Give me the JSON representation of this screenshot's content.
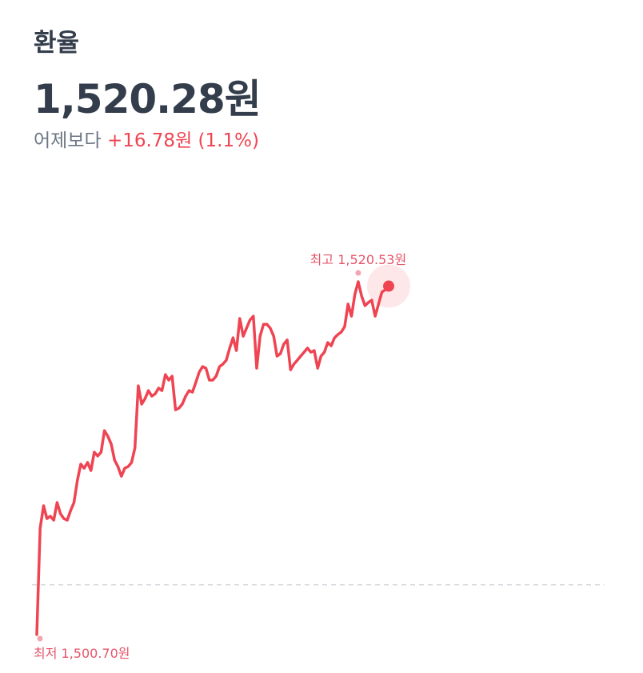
{
  "header": {
    "title": "환율",
    "price": "1,520.28원",
    "compare_label": "어제보다",
    "change": "+16.78원 (1.1%)"
  },
  "chart_data": {
    "type": "line",
    "color": "#ef4452",
    "values": [
      1500.7,
      1506.68,
      1507.94,
      1507.22,
      1507.35,
      1507.13,
      1508.12,
      1507.49,
      1507.22,
      1507.13,
      1507.67,
      1508.12,
      1509.38,
      1510.28,
      1510.05,
      1510.37,
      1509.92,
      1510.95,
      1510.73,
      1510.95,
      1512.16,
      1511.85,
      1511.4,
      1510.5,
      1510.14,
      1509.6,
      1510.05,
      1510.14,
      1510.37,
      1511.18,
      1514.68,
      1513.65,
      1513.96,
      1514.41,
      1514.1,
      1514.23,
      1514.55,
      1514.41,
      1515.31,
      1515.0,
      1515.22,
      1513.33,
      1513.42,
      1513.65,
      1514.1,
      1514.41,
      1514.32,
      1514.86,
      1515.45,
      1515.76,
      1515.67,
      1515.0,
      1515.0,
      1515.22,
      1515.76,
      1515.9,
      1516.12,
      1516.8,
      1517.38,
      1516.66,
      1518.46,
      1517.47,
      1517.92,
      1518.37,
      1518.59,
      1515.67,
      1517.47,
      1518.14,
      1518.14,
      1517.92,
      1517.47,
      1516.35,
      1516.48,
      1517.02,
      1517.25,
      1515.58,
      1515.9,
      1516.12,
      1516.35,
      1516.57,
      1516.8,
      1516.57,
      1516.66,
      1515.67,
      1516.35,
      1516.57,
      1517.11,
      1516.93,
      1517.38,
      1517.56,
      1517.7,
      1518.01,
      1519.27,
      1518.59,
      1519.81,
      1520.53,
      1519.72,
      1519.18,
      1519.36,
      1519.49,
      1518.59,
      1519.27,
      1519.94,
      1520.08,
      1520.28
    ],
    "ylim": [
      1500.7,
      1520.53
    ],
    "reference_line": 1503.5,
    "high_label": "최고 1,520.53원",
    "low_label": "최저 1,500.70원"
  }
}
